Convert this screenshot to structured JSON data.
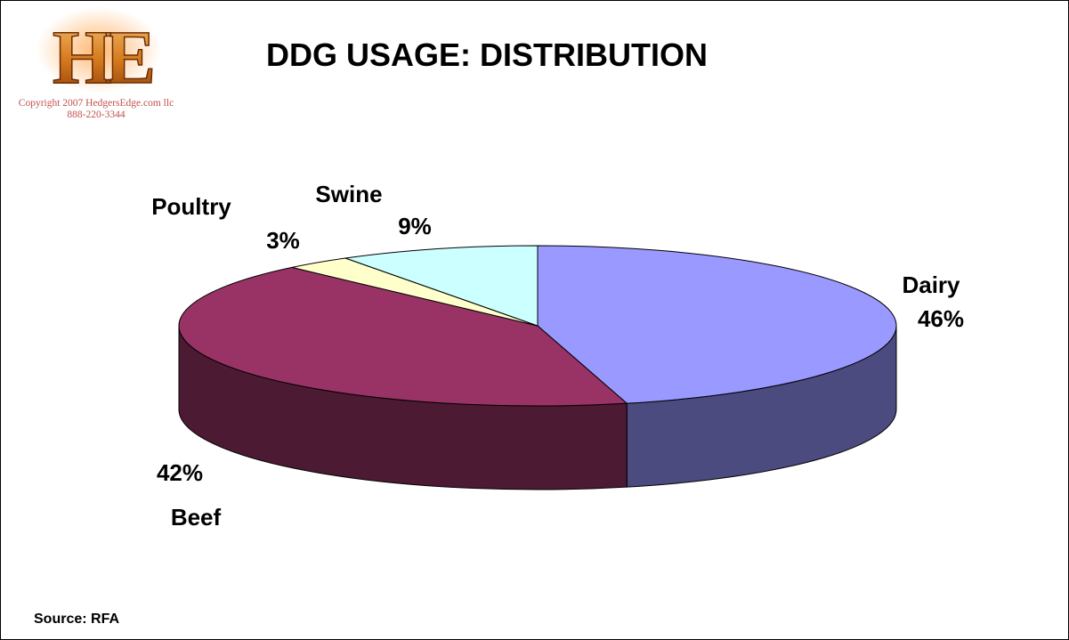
{
  "colors": {
    "dairy": "#9999ff",
    "dairy_side": "#4b4b7f",
    "beef": "#993366",
    "beef_side": "#4c1a33",
    "poultry": "#ffffcc",
    "swine": "#ccffff"
  },
  "logo": {
    "letters": "HE",
    "copyright": "Copyright 2007  HedgersEdge.com llc",
    "phone": "888-220-3344"
  },
  "source": "Source: RFA",
  "chart_data": {
    "type": "pie",
    "style": "3d",
    "title": "DDG USAGE: DISTRIBUTION",
    "slices": [
      {
        "label": "Dairy",
        "value": 46,
        "value_label": "46%",
        "color": "#9999ff"
      },
      {
        "label": "Beef",
        "value": 42,
        "value_label": "42%",
        "color": "#993366"
      },
      {
        "label": "Poultry",
        "value": 3,
        "value_label": "3%",
        "color": "#ffffcc"
      },
      {
        "label": "Swine",
        "value": 9,
        "value_label": "9%",
        "color": "#ccffff"
      }
    ]
  }
}
